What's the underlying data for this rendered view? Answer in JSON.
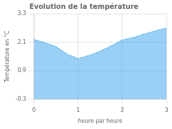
{
  "chart_data": {
    "type": "area",
    "title": "Evolution de la température",
    "x_label": "heure par heure",
    "y_label": "Température en °C",
    "x": [
      0,
      0.25,
      0.5,
      0.75,
      1.0,
      1.25,
      1.5,
      1.75,
      2.0,
      2.25,
      2.5,
      2.75,
      3.0
    ],
    "values": [
      2.22,
      2.08,
      1.92,
      1.6,
      1.42,
      1.55,
      1.72,
      1.95,
      2.2,
      2.3,
      2.45,
      2.58,
      2.7
    ],
    "xlim": [
      0,
      3
    ],
    "ylim": [
      -0.3,
      3.3
    ],
    "xticks": [
      0,
      1,
      2,
      3
    ],
    "yticks": [
      -0.3,
      0.9,
      2.1,
      3.3
    ],
    "grid": true,
    "line_style": "dotted"
  }
}
